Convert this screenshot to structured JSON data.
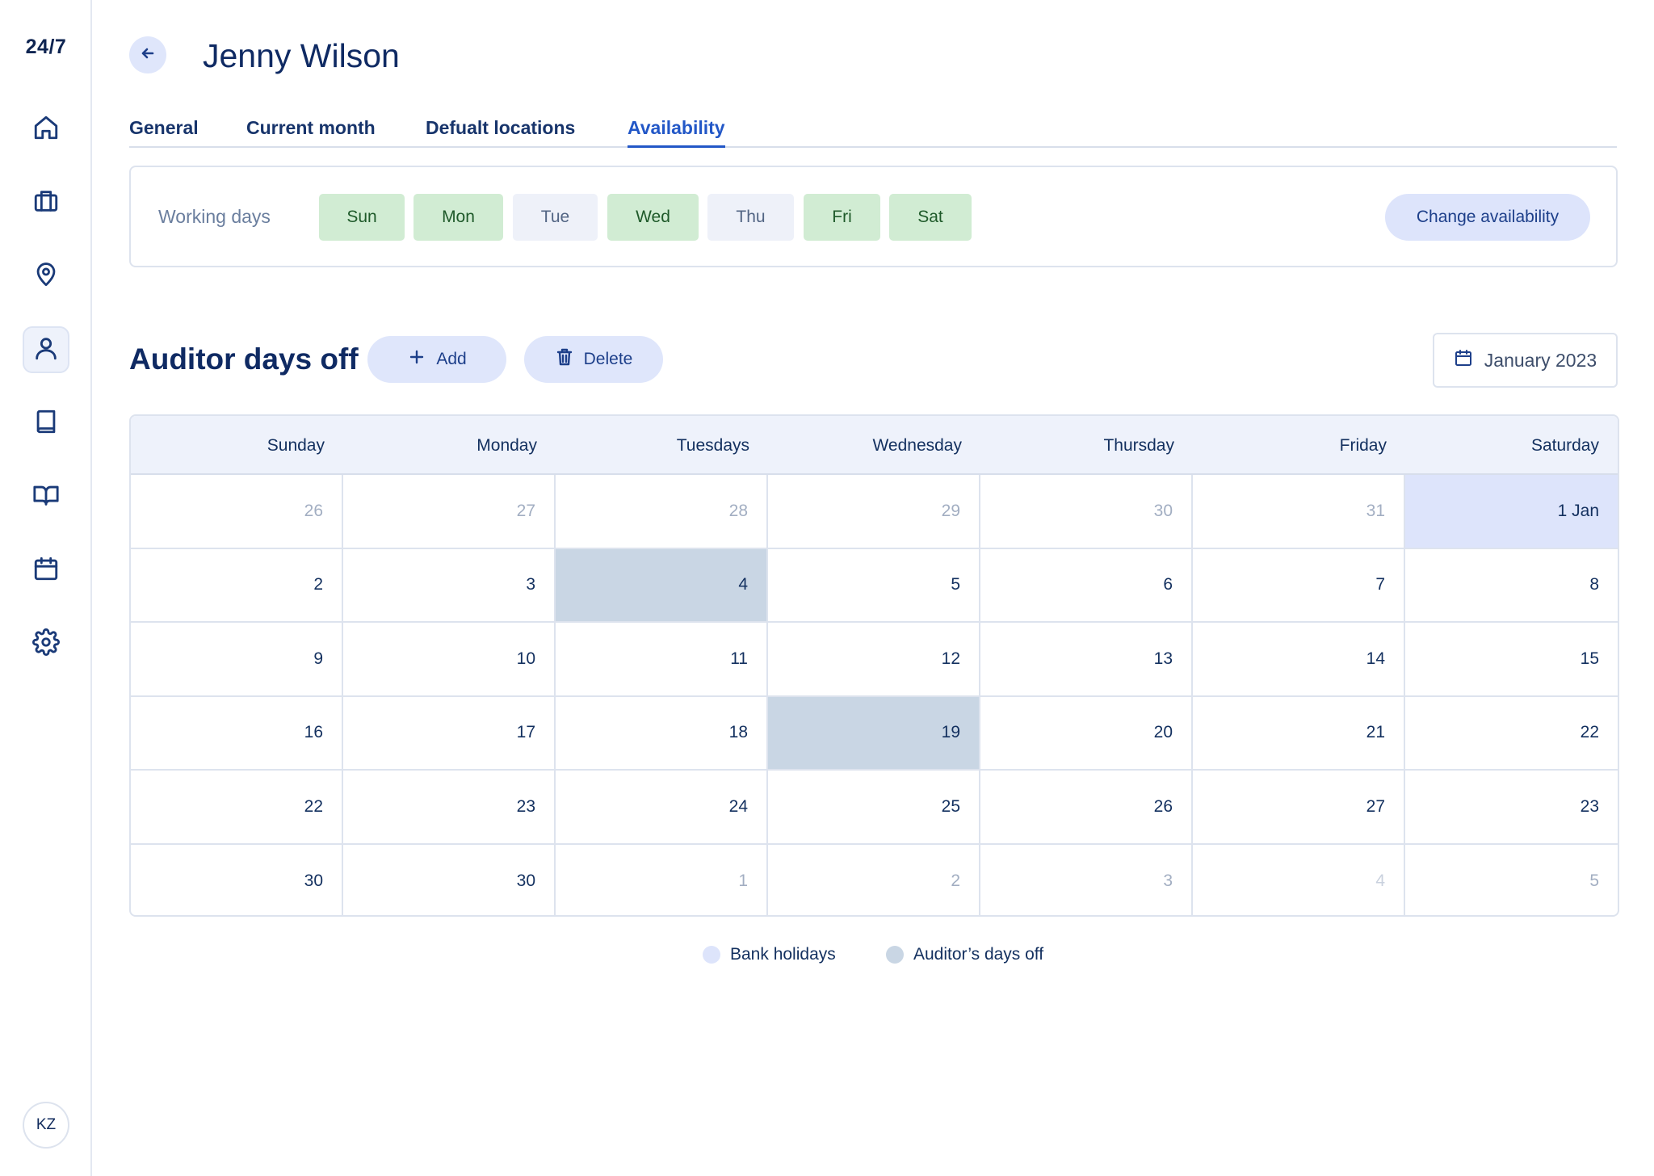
{
  "app": {
    "logo": "24/7",
    "user_initials": "KZ"
  },
  "sidebar": {
    "items": [
      {
        "name": "home",
        "icon": "home-icon",
        "active": false
      },
      {
        "name": "cases",
        "icon": "briefcase-icon",
        "active": false
      },
      {
        "name": "locations",
        "icon": "map-pin-icon",
        "active": false
      },
      {
        "name": "users",
        "icon": "user-icon",
        "active": true
      },
      {
        "name": "book",
        "icon": "book-icon",
        "active": false
      },
      {
        "name": "guide",
        "icon": "open-book-icon",
        "active": false
      },
      {
        "name": "calendar",
        "icon": "calendar-icon",
        "active": false
      },
      {
        "name": "settings",
        "icon": "gear-icon",
        "active": false
      }
    ]
  },
  "header": {
    "title": "Jenny Wilson"
  },
  "tabs": [
    {
      "label": "General",
      "active": false
    },
    {
      "label": "Current month",
      "active": false
    },
    {
      "label": "Defualt locations",
      "active": false
    },
    {
      "label": "Availability",
      "active": true
    }
  ],
  "working_days": {
    "label": "Working days",
    "days": [
      {
        "label": "Sun",
        "working": true
      },
      {
        "label": "Mon",
        "working": true
      },
      {
        "label": "Tue",
        "working": false
      },
      {
        "label": "Wed",
        "working": true
      },
      {
        "label": "Thu",
        "working": false
      },
      {
        "label": "Fri",
        "working": true
      },
      {
        "label": "Sat",
        "working": true
      }
    ],
    "change_button": "Change availability"
  },
  "days_off": {
    "title": "Auditor days off",
    "add_label": "Add",
    "delete_label": "Delete",
    "month": "January 2023"
  },
  "calendar": {
    "headers": [
      "Sunday",
      "Monday",
      "Tuesdays",
      "Wednesday",
      "Thursday",
      "Friday",
      "Saturday"
    ],
    "rows": [
      [
        {
          "label": "26",
          "state": "muted"
        },
        {
          "label": "27",
          "state": "muted"
        },
        {
          "label": "28",
          "state": "muted"
        },
        {
          "label": "29",
          "state": "muted"
        },
        {
          "label": "30",
          "state": "muted"
        },
        {
          "label": "31",
          "state": "muted"
        },
        {
          "label": "1 Jan",
          "state": "holiday"
        }
      ],
      [
        {
          "label": "2",
          "state": ""
        },
        {
          "label": "3",
          "state": ""
        },
        {
          "label": "4",
          "state": "dayoff"
        },
        {
          "label": "5",
          "state": ""
        },
        {
          "label": "6",
          "state": ""
        },
        {
          "label": "7",
          "state": ""
        },
        {
          "label": "8",
          "state": ""
        }
      ],
      [
        {
          "label": "9",
          "state": ""
        },
        {
          "label": "10",
          "state": ""
        },
        {
          "label": "11",
          "state": ""
        },
        {
          "label": "12",
          "state": ""
        },
        {
          "label": "13",
          "state": ""
        },
        {
          "label": "14",
          "state": ""
        },
        {
          "label": "15",
          "state": ""
        }
      ],
      [
        {
          "label": "16",
          "state": ""
        },
        {
          "label": "17",
          "state": ""
        },
        {
          "label": "18",
          "state": ""
        },
        {
          "label": "19",
          "state": "dayoff"
        },
        {
          "label": "20",
          "state": ""
        },
        {
          "label": "21",
          "state": ""
        },
        {
          "label": "22",
          "state": ""
        }
      ],
      [
        {
          "label": "22",
          "state": ""
        },
        {
          "label": "23",
          "state": ""
        },
        {
          "label": "24",
          "state": ""
        },
        {
          "label": "25",
          "state": ""
        },
        {
          "label": "26",
          "state": ""
        },
        {
          "label": "27",
          "state": ""
        },
        {
          "label": "23",
          "state": ""
        }
      ],
      [
        {
          "label": "30",
          "state": ""
        },
        {
          "label": "30",
          "state": ""
        },
        {
          "label": "1",
          "state": "muted"
        },
        {
          "label": "2",
          "state": "muted"
        },
        {
          "label": "3",
          "state": "muted"
        },
        {
          "label": "4",
          "state": "faint"
        },
        {
          "label": "5",
          "state": "muted"
        }
      ]
    ]
  },
  "legend": [
    {
      "label": "Bank holidays",
      "color": "#dde4fb"
    },
    {
      "label": "Auditor’s days off",
      "color": "#c9d6e4"
    }
  ]
}
